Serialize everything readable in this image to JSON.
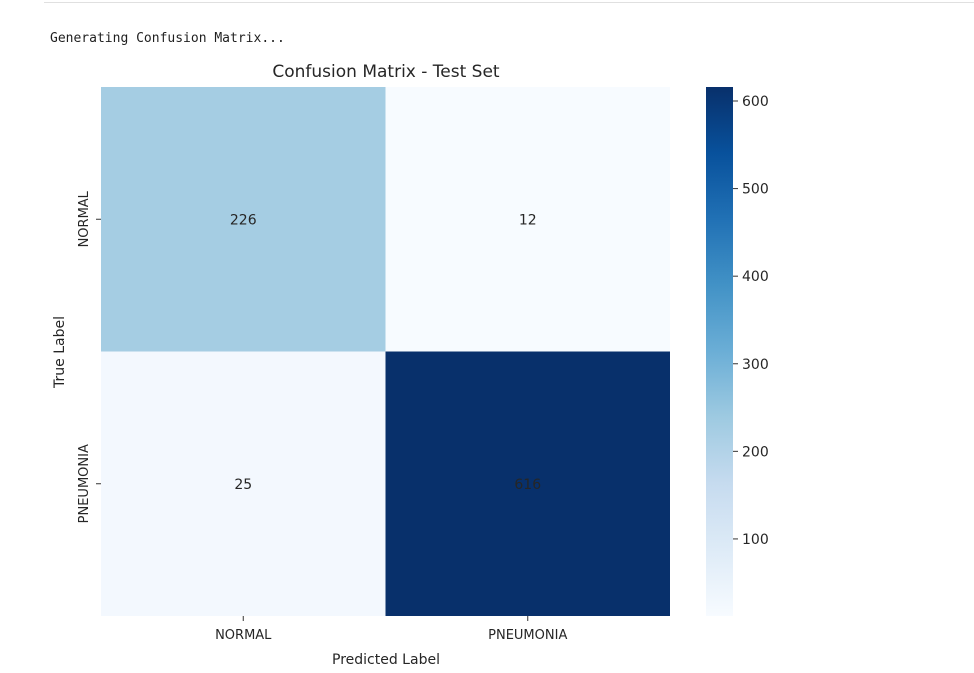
{
  "output": {
    "console_line": "Generating Confusion Matrix..."
  },
  "chart_data": {
    "type": "heatmap",
    "title": "Confusion Matrix - Test Set",
    "xlabel": "Predicted Label",
    "ylabel": "True Label",
    "x_categories": [
      "NORMAL",
      "PNEUMONIA"
    ],
    "y_categories": [
      "NORMAL",
      "PNEUMONIA"
    ],
    "values": [
      [
        226,
        12
      ],
      [
        25,
        616
      ]
    ],
    "colormap": "Blues",
    "colorbar": {
      "min": 12,
      "max": 616,
      "ticks": [
        100,
        200,
        300,
        400,
        500,
        600
      ]
    },
    "colors": {
      "low": "#f7fbff",
      "high": "#08306b"
    }
  }
}
